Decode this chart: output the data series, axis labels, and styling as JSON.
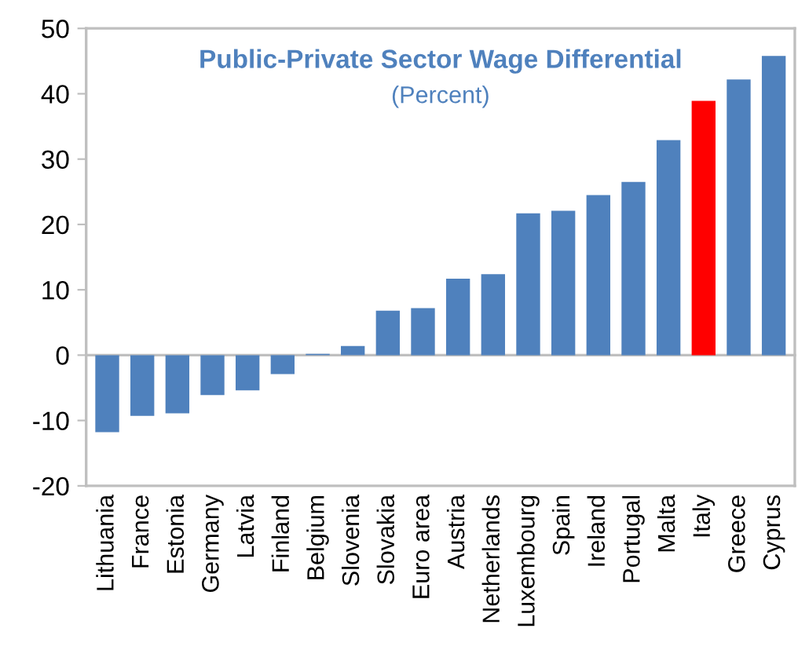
{
  "chart_data": {
    "type": "bar",
    "title": "Public-Private Sector Wage Differential",
    "subtitle": "(Percent)",
    "categories": [
      "Lithuania",
      "France",
      "Estonia",
      "Germany",
      "Latvia",
      "Finland",
      "Belgium",
      "Slovenia",
      "Slovakia",
      "Euro area",
      "Austria",
      "Netherlands",
      "Luxembourg",
      "Spain",
      "Ireland",
      "Portugal",
      "Malta",
      "Italy",
      "Greece",
      "Cyprus"
    ],
    "values": [
      -11.8,
      -9.3,
      -8.9,
      -6.1,
      -5.4,
      -2.9,
      0.2,
      1.4,
      6.8,
      7.2,
      11.7,
      12.4,
      21.7,
      22.1,
      24.5,
      26.5,
      32.9,
      38.9,
      42.2,
      45.8
    ],
    "colors": [
      "#4f81bd",
      "#4f81bd",
      "#4f81bd",
      "#4f81bd",
      "#4f81bd",
      "#4f81bd",
      "#4f81bd",
      "#4f81bd",
      "#4f81bd",
      "#4f81bd",
      "#4f81bd",
      "#4f81bd",
      "#4f81bd",
      "#4f81bd",
      "#4f81bd",
      "#4f81bd",
      "#4f81bd",
      "#ff0000",
      "#4f81bd",
      "#4f81bd"
    ],
    "ylim": [
      -20,
      50
    ],
    "yticks": [
      -20,
      -10,
      0,
      10,
      20,
      30,
      40,
      50
    ]
  }
}
